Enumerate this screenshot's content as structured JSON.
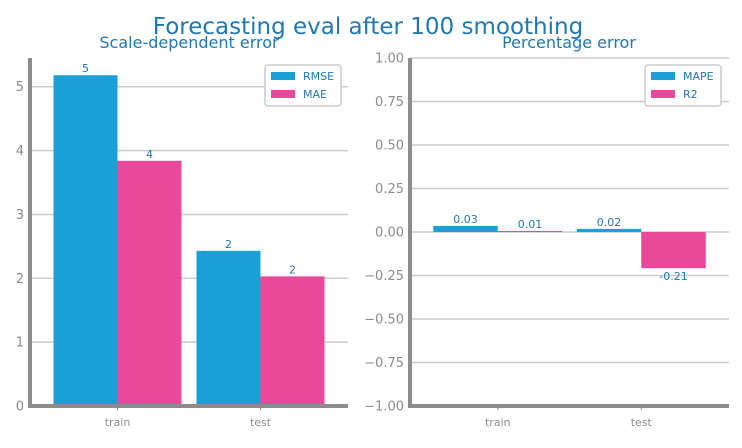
{
  "figure": {
    "suptitle": "Forecasting eval after 100 smoothing"
  },
  "colors": {
    "series_a": "#1a9fd7",
    "series_b": "#e9489b",
    "text": "#1f77b4",
    "axis": "#8c8c8c",
    "grid": "#cccccc",
    "spine": "#8c8c8c"
  },
  "chart_data": [
    {
      "type": "bar",
      "title": "Scale-dependent error",
      "categories": [
        "train",
        "test"
      ],
      "series": [
        {
          "name": "RMSE",
          "values": [
            5.18,
            2.43
          ],
          "labels": [
            "5",
            "2"
          ]
        },
        {
          "name": "MAE",
          "values": [
            3.84,
            2.03
          ],
          "labels": [
            "4",
            "2"
          ]
        }
      ],
      "ylim": [
        0,
        5.45
      ],
      "yticks": [
        0,
        1,
        2,
        3,
        4,
        5
      ],
      "ytick_labels": [
        "0",
        "1",
        "2",
        "3",
        "4",
        "5"
      ],
      "grid": true,
      "legend": "top-right"
    },
    {
      "type": "bar",
      "title": "Percentage error",
      "categories": [
        "train",
        "test"
      ],
      "series": [
        {
          "name": "MAPE",
          "values": [
            0.035,
            0.018
          ],
          "labels": [
            "0.03",
            "0.02"
          ]
        },
        {
          "name": "R2",
          "values": [
            0.006,
            -0.208
          ],
          "labels": [
            "0.01",
            "-0.21"
          ]
        }
      ],
      "ylim": [
        -1.0,
        1.0
      ],
      "yticks": [
        -1.0,
        -0.75,
        -0.5,
        -0.25,
        0.0,
        0.25,
        0.5,
        0.75,
        1.0
      ],
      "ytick_labels": [
        "−1.00",
        "−0.75",
        "−0.50",
        "−0.25",
        "0.00",
        "0.25",
        "0.50",
        "0.75",
        "1.00"
      ],
      "grid": true,
      "legend": "top-right"
    }
  ]
}
